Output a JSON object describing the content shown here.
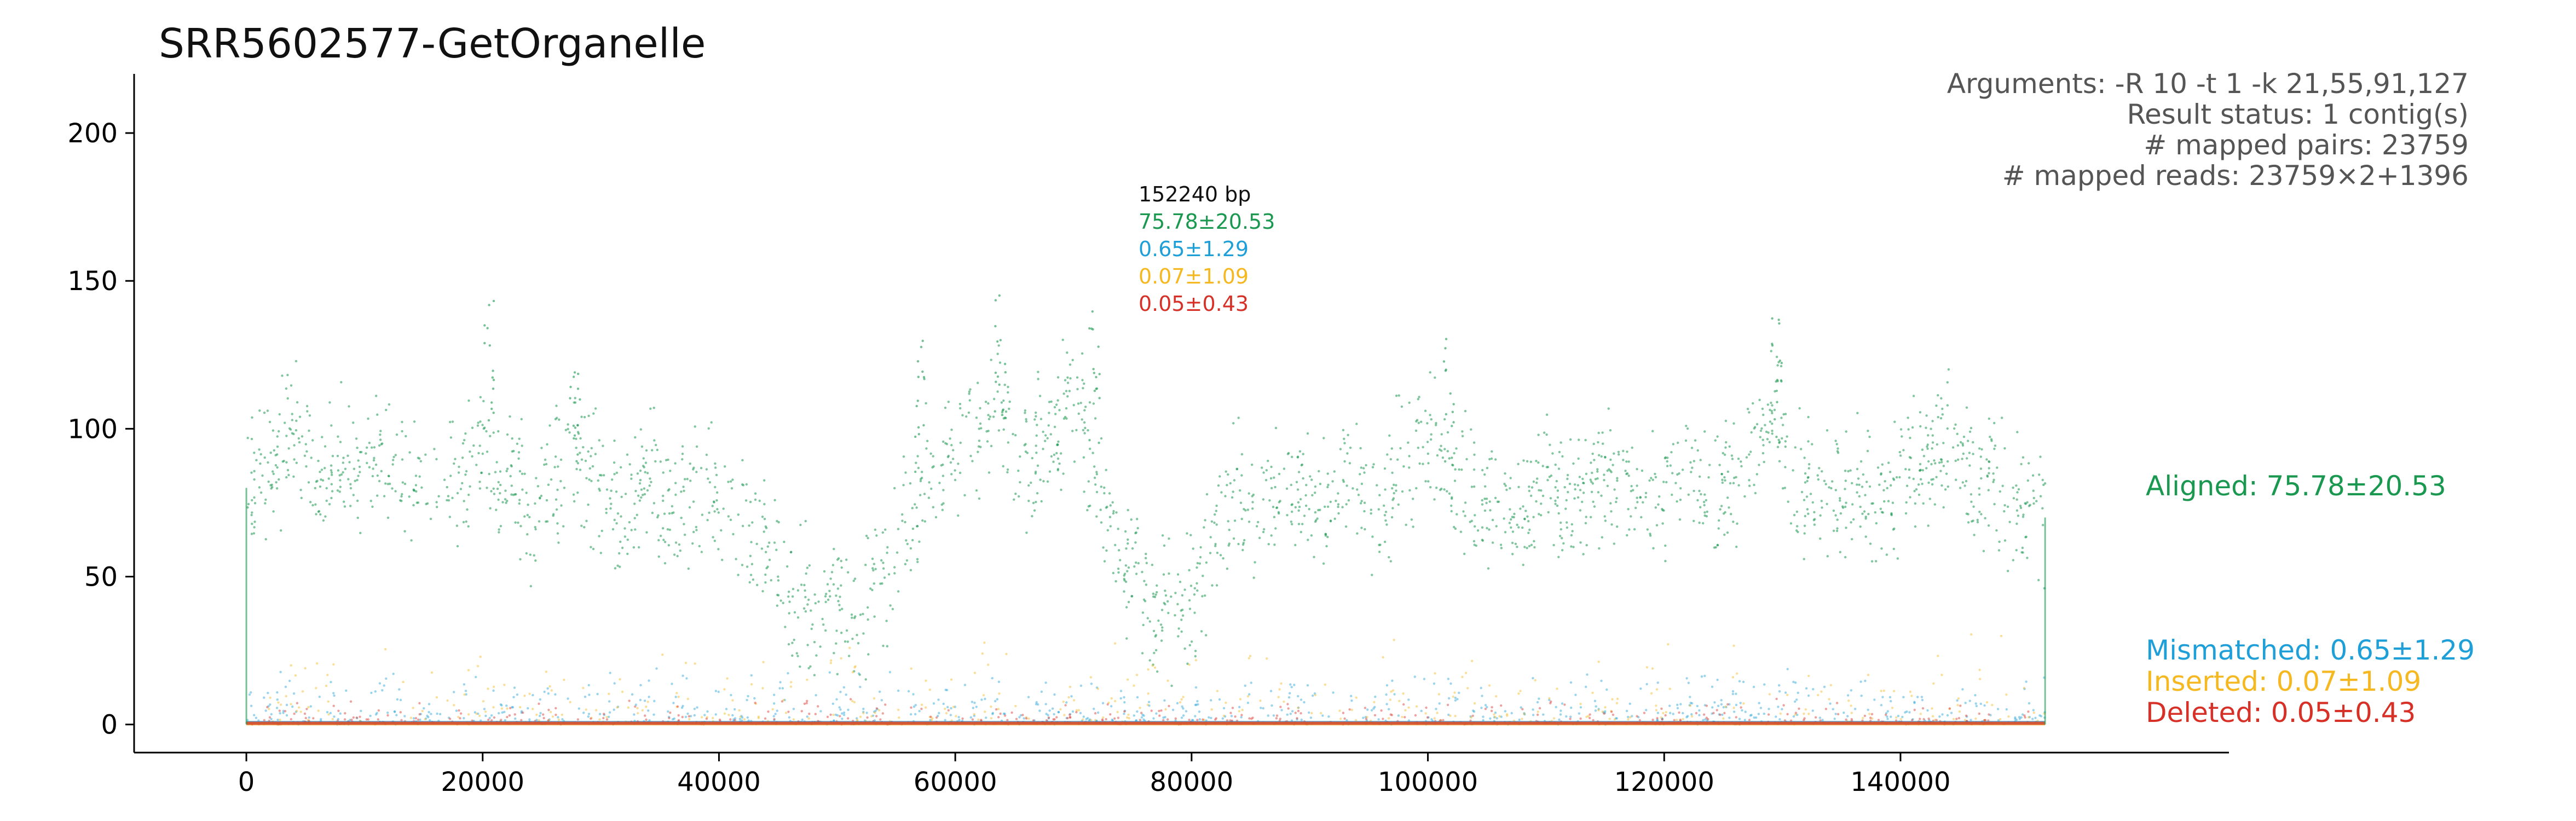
{
  "chart_data": {
    "type": "scatter",
    "title": "SRR5602577-GetOrganelle",
    "xlabel": "",
    "ylabel": "",
    "xlim": [
      -9500,
      167800
    ],
    "ylim": [
      -9.5,
      220
    ],
    "x_ticks": [
      0,
      20000,
      40000,
      60000,
      80000,
      100000,
      120000,
      140000
    ],
    "y_ticks": [
      0,
      50,
      100,
      150,
      200
    ],
    "info_lines": [
      "Arguments: -R 10 -t 1 -k 21,55,91,127",
      "Result status: 1 contig(s)",
      "# mapped pairs: 23759",
      "# mapped reads: 23759×2+1396"
    ],
    "contig": {
      "length_label": "152240 bp",
      "length": 152240,
      "stats": [
        {
          "text": "75.78±20.53",
          "color": "#1a9850"
        },
        {
          "text": "0.65±1.29",
          "color": "#1f9fd8"
        },
        {
          "text": "0.07±1.09",
          "color": "#f5b820"
        },
        {
          "text": "0.05±0.43",
          "color": "#d73027"
        }
      ]
    },
    "series": [
      {
        "name": "Aligned: 75.78±20.53",
        "color": "#1a9850",
        "x": [
          0,
          2000,
          4000,
          6000,
          8000,
          10000,
          12000,
          14000,
          16000,
          18000,
          20000,
          21000,
          22000,
          24000,
          26000,
          28000,
          30000,
          32000,
          34000,
          36000,
          38000,
          40000,
          42000,
          44000,
          46000,
          48000,
          50000,
          52000,
          54000,
          56000,
          58000,
          60000,
          62000,
          64000,
          66000,
          68000,
          70000,
          72000,
          74000,
          76000,
          78000,
          80000,
          82000,
          84000,
          86000,
          88000,
          90000,
          92000,
          94000,
          96000,
          98000,
          100000,
          102000,
          104000,
          106000,
          108000,
          110000,
          112000,
          114000,
          116000,
          118000,
          120000,
          122000,
          124000,
          126000,
          128000,
          129500,
          131000,
          132000,
          134000,
          136000,
          138000,
          140000,
          142000,
          144000,
          146000,
          148000,
          150000,
          152000
        ],
        "y": [
          75,
          90,
          98,
          80,
          88,
          85,
          92,
          82,
          88,
          80,
          100,
          78,
          85,
          72,
          80,
          95,
          78,
          70,
          85,
          72,
          80,
          75,
          70,
          60,
          42,
          38,
          45,
          32,
          55,
          70,
          85,
          95,
          100,
          110,
          90,
          95,
          115,
          85,
          55,
          45,
          38,
          42,
          65,
          80,
          72,
          75,
          80,
          78,
          85,
          72,
          90,
          95,
          85,
          80,
          75,
          70,
          82,
          75,
          80,
          85,
          78,
          82,
          88,
          75,
          85,
          95,
          115,
          70,
          85,
          78,
          80,
          75,
          85,
          90,
          95,
          85,
          80,
          72,
          70
        ]
      },
      {
        "name": "Mismatched: 0.65±1.29",
        "color": "#1f9fd8",
        "x": [
          0,
          152240
        ],
        "y": [
          0.65,
          0.65
        ]
      },
      {
        "name": "Inserted: 0.07±1.09",
        "color": "#f5b820",
        "x": [
          0,
          152240
        ],
        "y": [
          0.07,
          0.07
        ]
      },
      {
        "name": "Deleted: 0.05±0.43",
        "color": "#d73027",
        "x": [
          0,
          152240
        ],
        "y": [
          0.05,
          0.05
        ]
      }
    ],
    "grid": false,
    "legend": "right, labels at series levels"
  }
}
